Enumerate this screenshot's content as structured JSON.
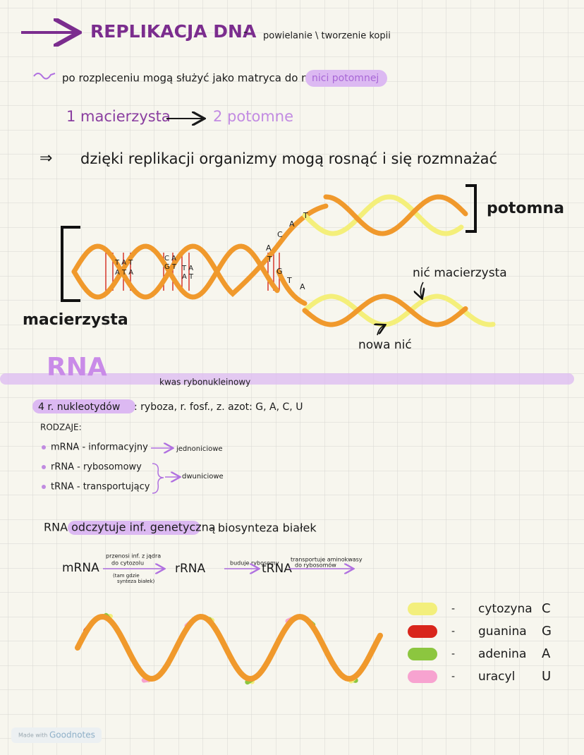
{
  "header": {
    "title": "REPLIKACJA DNA",
    "dash": "-",
    "note": "powielanie \\ tworzenie kopii"
  },
  "line1": {
    "text": "po rozpleceniu mogą służyć jako matryca do nowej",
    "highlight": "nici potomnej"
  },
  "line2": {
    "left": "1 macierzysta",
    "right": "2 potomne"
  },
  "line3": {
    "symbol": "⇒",
    "text": "dzięki replikacji organizmy mogą rosnąć i się rozmnażać"
  },
  "diagram": {
    "daughter": "potomna",
    "parent": "macierzysta",
    "parent_strand": "nić macierzysta",
    "new_strand": "nowa nić",
    "helix_letters": [
      "T A T",
      "A T A",
      "C A",
      "G T",
      "T A",
      "A T"
    ],
    "fork_letters": [
      "C",
      "A",
      "T",
      "A",
      "T",
      "G",
      "T",
      "A"
    ]
  },
  "rna": {
    "title": "RNA",
    "subtitle": "kwas rybonukleinowy",
    "nucleotides_label": "4 r. nukleotydów",
    "nucleotides_text": ": ryboza, r. fosf., z. azot: G, A, C, U",
    "types_label": "RODZAJE:",
    "types": [
      "mRNA - informacyjny",
      "rRNA - rybosomowy",
      "tRNA - transportujący"
    ],
    "single": "jednoniciowe",
    "double": "dwuniciowe",
    "reads": "RNA odczytuje inf. genetyczną",
    "reads_note": "- biosynteza białek",
    "flow": {
      "mrna": "mRNA",
      "rrna": "rRNA",
      "trna": "tRNA",
      "note1": [
        "przenosi inf. z jądra",
        "do cytozolu"
      ],
      "note1_sub": [
        "(tam gdzie",
        "synteza białek)"
      ],
      "note2": "buduje rybosomy",
      "note3": [
        "transportuje aminokwasy",
        "do rybosomów"
      ]
    }
  },
  "legend": [
    {
      "name": "cytozyna",
      "letter": "C",
      "color": "#f3ef7c"
    },
    {
      "name": "guanina",
      "letter": "G",
      "color": "#d9261c"
    },
    {
      "name": "adenina",
      "letter": "A",
      "color": "#8cc63f"
    },
    {
      "name": "uracyl",
      "letter": "U",
      "color": "#f7a3d0"
    }
  ],
  "footer": {
    "made": "Made with",
    "brand": "Goodnotes"
  }
}
